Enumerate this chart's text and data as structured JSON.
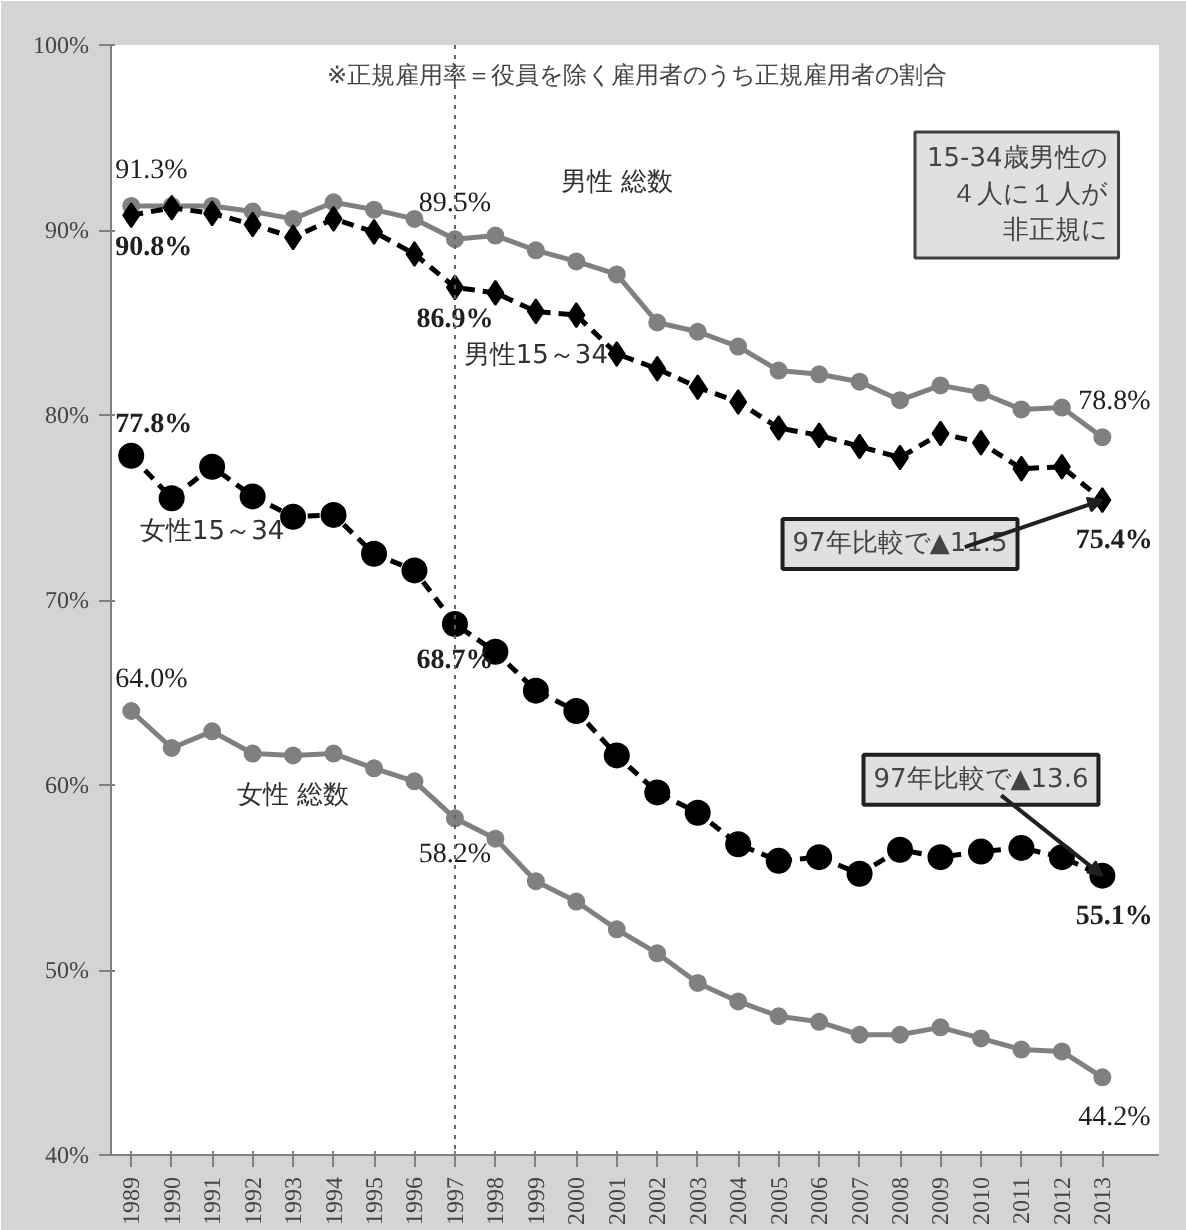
{
  "chart_data": {
    "type": "line",
    "categories": [
      "1989",
      "1990",
      "1991",
      "1992",
      "1993",
      "1994",
      "1995",
      "1996",
      "1997",
      "1998",
      "1999",
      "2000",
      "2001",
      "2002",
      "2003",
      "2004",
      "2005",
      "2006",
      "2007",
      "2008",
      "2009",
      "2010",
      "2011",
      "2012",
      "2013"
    ],
    "series": [
      {
        "name": "男性 総数",
        "color": "#808080",
        "marker": "circle",
        "line_style": "solid",
        "values": [
          91.3,
          91.3,
          91.3,
          91.0,
          90.6,
          91.5,
          91.1,
          90.6,
          89.5,
          89.7,
          88.9,
          88.3,
          87.6,
          85.0,
          84.5,
          83.7,
          82.4,
          82.2,
          81.8,
          80.8,
          81.6,
          81.2,
          80.3,
          80.4,
          78.8
        ],
        "value_labels": [
          "91.3%",
          null,
          null,
          null,
          null,
          null,
          null,
          null,
          "89.5%",
          null,
          null,
          null,
          null,
          null,
          null,
          null,
          null,
          null,
          null,
          null,
          null,
          null,
          null,
          null,
          "78.8%"
        ]
      },
      {
        "name": "男性15～34",
        "color": "#000000",
        "marker": "diamond",
        "line_style": "dashed",
        "values": [
          90.8,
          91.2,
          90.9,
          90.3,
          89.6,
          90.6,
          89.9,
          88.7,
          86.9,
          86.6,
          85.6,
          85.4,
          83.3,
          82.5,
          81.5,
          80.7,
          79.3,
          78.9,
          78.3,
          77.7,
          79.0,
          78.5,
          77.1,
          77.2,
          75.4
        ],
        "value_labels": [
          "90.8%",
          null,
          null,
          null,
          null,
          null,
          null,
          null,
          "86.9%",
          null,
          null,
          null,
          null,
          null,
          null,
          null,
          null,
          null,
          null,
          null,
          null,
          null,
          null,
          null,
          "75.4%"
        ]
      },
      {
        "name": "女性15～34",
        "color": "#000000",
        "marker": "circle",
        "line_style": "dashed",
        "values": [
          77.8,
          75.5,
          77.2,
          75.6,
          74.5,
          74.6,
          72.5,
          71.6,
          68.7,
          67.2,
          65.1,
          64.0,
          61.6,
          59.6,
          58.5,
          56.8,
          55.9,
          56.1,
          55.2,
          56.5,
          56.1,
          56.4,
          56.6,
          56.1,
          55.1
        ],
        "value_labels": [
          "77.8%",
          null,
          null,
          null,
          null,
          null,
          null,
          null,
          "68.7%",
          null,
          null,
          null,
          null,
          null,
          null,
          null,
          null,
          null,
          null,
          null,
          null,
          null,
          null,
          null,
          "55.1%"
        ]
      },
      {
        "name": "女性 総数",
        "color": "#808080",
        "marker": "circle",
        "line_style": "solid",
        "values": [
          64.0,
          62.0,
          62.9,
          61.7,
          61.6,
          61.7,
          60.9,
          60.2,
          58.2,
          57.1,
          54.8,
          53.7,
          52.2,
          50.9,
          49.3,
          48.3,
          47.5,
          47.2,
          46.5,
          46.5,
          46.9,
          46.3,
          45.7,
          45.6,
          44.2
        ],
        "value_labels": [
          "64.0%",
          null,
          null,
          null,
          null,
          null,
          null,
          null,
          "58.2%",
          null,
          null,
          null,
          null,
          null,
          null,
          null,
          null,
          null,
          null,
          null,
          null,
          null,
          null,
          null,
          "44.2%"
        ]
      }
    ],
    "ylim": [
      40,
      100
    ],
    "yticks": [
      {
        "value": 40,
        "label": "40%"
      },
      {
        "value": 50,
        "label": "50%"
      },
      {
        "value": 60,
        "label": "60%"
      },
      {
        "value": 70,
        "label": "70%"
      },
      {
        "value": 80,
        "label": "80%"
      },
      {
        "value": 90,
        "label": "90%"
      },
      {
        "value": 100,
        "label": "100%"
      }
    ],
    "grid": false,
    "ref_lines": [
      {
        "axis": "x",
        "value": "1997",
        "line_style": "dotted",
        "color": "#606060"
      }
    ],
    "annotations": [
      "※正規雇用率＝役員を除く雇用者のうち正規雇用者の割合",
      "15-34歳男性の４人に１人が非正規に",
      {
        "text": "97年比較で▲11.5",
        "x": "2013",
        "y": 75.4
      },
      {
        "text": "97年比較で▲13.6",
        "x": "2013",
        "y": 55.1
      }
    ]
  }
}
